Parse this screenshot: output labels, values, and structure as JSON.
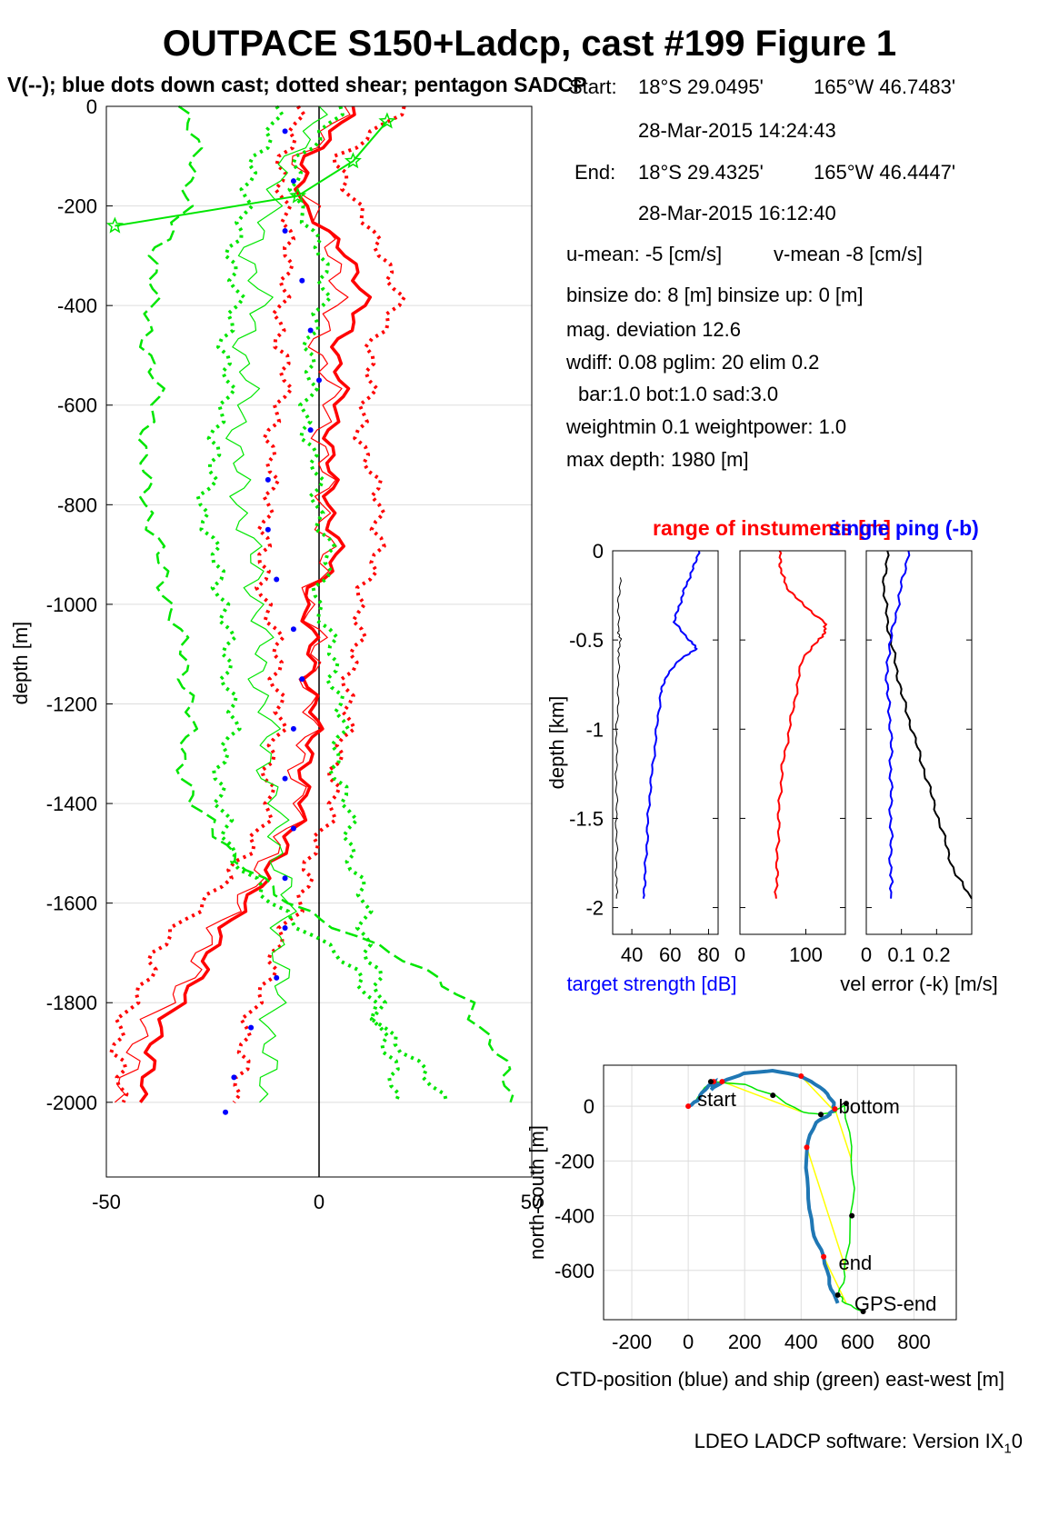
{
  "header": {
    "title": "OUTPACE S150+Ladcp, cast #199  Figure 1",
    "subtitle": "V(--); blue dots down cast; dotted shear; pentagon SADCP"
  },
  "info": {
    "start_label": "Start:",
    "start_lat": "18°S 29.0495'",
    "start_lon": "165°W 46.7483'",
    "start_time": "28-Mar-2015 14:24:43",
    "end_label": "End:",
    "end_lat": "18°S 29.4325'",
    "end_lon": "165°W 46.4447'",
    "end_time": "28-Mar-2015 16:12:40",
    "u_mean": "u-mean:  -5 [cm/s]",
    "v_mean": "v-mean  -8 [cm/s]",
    "binsize": "binsize do: 8 [m]  binsize up:  0 [m]",
    "mag_dev": "mag. deviation 12.6",
    "wdiff": "wdiff: 0.08  pglim: 20  elim 0.2",
    "bar": "bar:1.0 bot:1.0 sad:3.0",
    "weight": "weightmin 0.1  weightpower: 1.0",
    "max_depth": "max depth: 1980 [m]"
  },
  "footer": {
    "software": "LDEO LADCP software: Version IX",
    "sub": "1",
    "tail": "0"
  },
  "colors": {
    "red": "#ff0000",
    "green": "#00e600",
    "blue": "#0000ff",
    "black": "#000000",
    "ctd_blue": "#1f77b4",
    "yellow": "#ffff00",
    "grid": "#dddddd"
  },
  "chart_data": [
    {
      "type": "line",
      "name": "velocity-profile",
      "ylabel": "depth [m]",
      "xlim": [
        -50,
        50
      ],
      "ylim": [
        -2150,
        0
      ],
      "xticks": [
        "-50",
        "0",
        "50"
      ],
      "yticks": [
        "0",
        "-200",
        "-400",
        "-600",
        "-800",
        "-1000",
        "-1200",
        "-1400",
        "-1600",
        "-1800",
        "-2000"
      ],
      "depth_knots": [
        0,
        -100,
        -200,
        -300,
        -400,
        -500,
        -600,
        -700,
        -800,
        -900,
        -1000,
        -1100,
        -1200,
        -1300,
        -1400,
        -1500,
        -1600,
        -1700,
        -1800,
        -1900,
        -2000
      ],
      "series": [
        {
          "color": "red",
          "style": "thick",
          "values": [
            8,
            -2,
            -5,
            8,
            10,
            4,
            5,
            2,
            3,
            4,
            -3,
            -2,
            -1,
            -2,
            -4,
            -8,
            -18,
            -25,
            -33,
            -40,
            -42
          ]
        },
        {
          "color": "red",
          "style": "thin",
          "values": [
            6,
            -4,
            -3,
            5,
            3,
            0,
            3,
            0,
            2,
            1,
            -2,
            -1,
            -2,
            -4,
            -5,
            -10,
            -20,
            -27,
            -36,
            -44,
            -48
          ]
        },
        {
          "color": "red",
          "style": "dotted",
          "values": [
            20,
            5,
            8,
            16,
            18,
            12,
            11,
            10,
            15,
            13,
            10,
            8,
            7,
            5,
            3,
            -1,
            -5,
            -10,
            -15,
            -18,
            -20
          ]
        },
        {
          "color": "red",
          "style": "dotted",
          "values": [
            -5,
            -8,
            -9,
            -6,
            -10,
            -8,
            -9,
            -12,
            -11,
            -14,
            -12,
            -10,
            -9,
            -11,
            -12,
            -16,
            -28,
            -38,
            -44,
            -48,
            -46
          ]
        },
        {
          "color": "green",
          "style": "thin",
          "values": [
            0,
            -6,
            -12,
            -16,
            -14,
            -18,
            -17,
            -20,
            -18,
            -16,
            -14,
            -14,
            -13,
            -12,
            -11,
            -9,
            -8,
            -9,
            -10,
            -12,
            -14
          ]
        },
        {
          "color": "green",
          "style": "dashed",
          "values": [
            -33,
            -28,
            -32,
            -38,
            -40,
            -40,
            -38,
            -42,
            -40,
            -38,
            -35,
            -32,
            -30,
            -32,
            -30,
            -20,
            -8,
            18,
            35,
            42,
            45
          ]
        },
        {
          "color": "green",
          "style": "dotted",
          "values": [
            -10,
            -14,
            -18,
            -20,
            -20,
            -22,
            -22,
            -25,
            -27,
            -25,
            -22,
            -22,
            -20,
            -22,
            -24,
            -20,
            -12,
            5,
            12,
            20,
            30
          ]
        },
        {
          "color": "green",
          "style": "dotted",
          "values": [
            5,
            -4,
            -6,
            2,
            0,
            -2,
            -3,
            -2,
            0,
            2,
            0,
            3,
            5,
            4,
            6,
            8,
            10,
            12,
            14,
            16,
            18
          ]
        }
      ],
      "blue_dots": {
        "depth": [
          -50,
          -150,
          -250,
          -350,
          -450,
          -550,
          -650,
          -750,
          -850,
          -950,
          -1050,
          -1150,
          -1250,
          -1350,
          -1450,
          -1550,
          -1650,
          -1750,
          -1850,
          -1950,
          -2020
        ],
        "values": [
          -8,
          -6,
          -8,
          -4,
          -2,
          0,
          -2,
          -12,
          -12,
          -10,
          -6,
          -4,
          -6,
          -8,
          -6,
          -8,
          -8,
          -10,
          -16,
          -20,
          -22
        ]
      },
      "sadcp_pentagons": {
        "depth": [
          -30,
          -110,
          -180,
          -240
        ],
        "values": [
          16,
          8,
          -5,
          -48
        ]
      }
    },
    {
      "type": "line",
      "name": "target-strength",
      "title_red": "range of instuments [m]",
      "title_blue": "single ping (-b)",
      "ylabel": "depth [km]",
      "xlabel": "target strength [dB]",
      "xlim": [
        30,
        85
      ],
      "ylim": [
        -2.15,
        0
      ],
      "xticks": [
        "40",
        "60",
        "80"
      ],
      "yticks": [
        "0",
        "-0.5",
        "-1",
        "-1.5",
        "-2"
      ],
      "series": [
        {
          "color": "blue",
          "depth": [
            0,
            -0.1,
            -0.2,
            -0.3,
            -0.4,
            -0.5,
            -0.55,
            -0.6,
            -0.7,
            -0.8,
            -1.0,
            -1.2,
            -1.4,
            -1.6,
            -1.8,
            -1.95
          ],
          "values": [
            75,
            72,
            68,
            65,
            62,
            70,
            74,
            66,
            58,
            55,
            53,
            51,
            49,
            48,
            47,
            46
          ]
        },
        {
          "color": "black",
          "depth": [
            -0.15,
            -0.3,
            -0.45,
            -0.5,
            -0.6,
            -0.8,
            -1.0,
            -1.2,
            -1.4,
            -1.6,
            -1.8,
            -1.95
          ],
          "values": [
            34,
            33,
            33,
            34,
            33,
            33,
            32,
            32,
            32,
            32,
            32,
            32
          ]
        }
      ]
    },
    {
      "type": "line",
      "name": "instrument-range",
      "xlim": [
        0,
        160
      ],
      "ylim": [
        -2.15,
        0
      ],
      "xticks": [
        "0",
        "100"
      ],
      "series": [
        {
          "color": "red",
          "depth": [
            0,
            -0.1,
            -0.2,
            -0.3,
            -0.4,
            -0.45,
            -0.5,
            -0.6,
            -0.8,
            -1.0,
            -1.2,
            -1.4,
            -1.6,
            -1.8,
            -1.95
          ],
          "values": [
            60,
            62,
            70,
            95,
            128,
            130,
            120,
            95,
            85,
            75,
            65,
            60,
            58,
            56,
            55
          ]
        }
      ]
    },
    {
      "type": "line",
      "name": "velocity-error",
      "xlabel": "vel error (-k) [m/s]",
      "xlim": [
        0,
        0.3
      ],
      "ylim": [
        -2.15,
        0
      ],
      "xticks": [
        "0",
        "0.1",
        "0.2"
      ],
      "series": [
        {
          "color": "black",
          "depth": [
            0,
            -0.2,
            -0.4,
            -0.6,
            -0.8,
            -1.0,
            -1.2,
            -1.4,
            -1.6,
            -1.8,
            -1.95
          ],
          "values": [
            0.06,
            0.05,
            0.06,
            0.08,
            0.1,
            0.13,
            0.16,
            0.19,
            0.22,
            0.25,
            0.3
          ]
        },
        {
          "color": "blue",
          "depth": [
            0,
            -0.2,
            -0.4,
            -0.6,
            -0.8,
            -1.0,
            -1.2,
            -1.4,
            -1.6,
            -1.8,
            -1.95
          ],
          "values": [
            0.12,
            0.1,
            0.08,
            0.06,
            0.06,
            0.07,
            0.07,
            0.07,
            0.07,
            0.07,
            0.07
          ]
        }
      ]
    },
    {
      "type": "line",
      "name": "ship-track",
      "xlabel": "CTD-position (blue) and ship (green) east-west [m]",
      "ylabel": "north-south [m]",
      "xlim": [
        -300,
        950
      ],
      "ylim": [
        -780,
        150
      ],
      "xticks": [
        "-200",
        "0",
        "200",
        "400",
        "600",
        "800"
      ],
      "yticks": [
        "0",
        "-200",
        "-400",
        "-600"
      ],
      "ctd": {
        "x": [
          0,
          30,
          60,
          90,
          100,
          80,
          120,
          200,
          300,
          400,
          470,
          510,
          520,
          500,
          450,
          420,
          420,
          440,
          480,
          500,
          530
        ],
        "y": [
          0,
          20,
          60,
          90,
          80,
          60,
          90,
          120,
          130,
          110,
          70,
          20,
          -10,
          -30,
          -60,
          -150,
          -300,
          -450,
          -550,
          -650,
          -720
        ]
      },
      "ship": {
        "x": [
          0,
          80,
          200,
          300,
          400,
          470,
          520,
          560,
          580,
          580,
          560,
          530,
          560,
          620
        ],
        "y": [
          0,
          90,
          80,
          40,
          -20,
          -30,
          -20,
          10,
          -200,
          -400,
          -600,
          -690,
          -720,
          -750
        ]
      },
      "labels": [
        "start",
        "bottom",
        "end",
        "GPS-end"
      ],
      "label_points": {
        "x": [
          0,
          520,
          520,
          550
        ],
        "y": [
          0,
          0,
          -650,
          -720
        ]
      }
    }
  ]
}
